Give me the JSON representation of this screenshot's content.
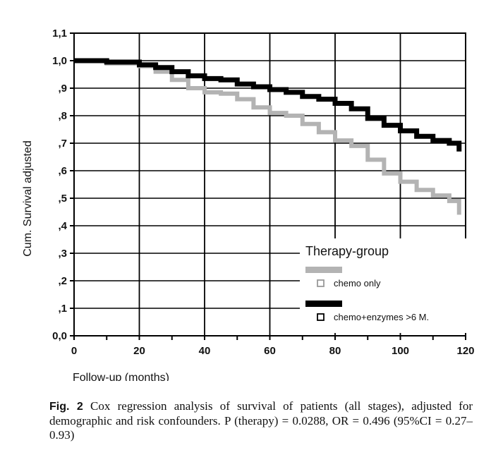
{
  "chart_data": {
    "type": "line",
    "xlabel": "Follow-up (months)",
    "ylabel": "Cum. Survival adjusted",
    "xlim": [
      0,
      120
    ],
    "ylim": [
      0,
      1.1
    ],
    "x_ticks": [
      "0",
      "20",
      "40",
      "60",
      "80",
      "100",
      "120"
    ],
    "y_ticks": [
      "0,0",
      ",1",
      ",2",
      ",3",
      ",4",
      ",5",
      ",6",
      ",7",
      ",8",
      ",9",
      "1,0",
      "1,1"
    ],
    "grid": true,
    "legend_title": "Therapy-group",
    "legend_position": "bottom-right",
    "series": [
      {
        "name": "chemo only",
        "color": "#b3b3b3",
        "points": [
          [
            0,
            1.0
          ],
          [
            10,
            0.99
          ],
          [
            20,
            0.98
          ],
          [
            25,
            0.96
          ],
          [
            30,
            0.93
          ],
          [
            35,
            0.9
          ],
          [
            40,
            0.885
          ],
          [
            45,
            0.88
          ],
          [
            50,
            0.86
          ],
          [
            55,
            0.83
          ],
          [
            60,
            0.81
          ],
          [
            65,
            0.8
          ],
          [
            70,
            0.77
          ],
          [
            75,
            0.74
          ],
          [
            80,
            0.71
          ],
          [
            85,
            0.69
          ],
          [
            90,
            0.64
          ],
          [
            95,
            0.59
          ],
          [
            100,
            0.56
          ],
          [
            105,
            0.53
          ],
          [
            110,
            0.51
          ],
          [
            115,
            0.49
          ],
          [
            118,
            0.44
          ]
        ]
      },
      {
        "name": "chemo+enzymes >6 M.",
        "color": "#000000",
        "points": [
          [
            0,
            1.0
          ],
          [
            10,
            0.995
          ],
          [
            20,
            0.985
          ],
          [
            25,
            0.975
          ],
          [
            30,
            0.96
          ],
          [
            35,
            0.945
          ],
          [
            40,
            0.935
          ],
          [
            45,
            0.93
          ],
          [
            50,
            0.915
          ],
          [
            55,
            0.905
          ],
          [
            60,
            0.895
          ],
          [
            65,
            0.885
          ],
          [
            70,
            0.87
          ],
          [
            75,
            0.86
          ],
          [
            80,
            0.845
          ],
          [
            85,
            0.825
          ],
          [
            90,
            0.79
          ],
          [
            95,
            0.765
          ],
          [
            100,
            0.745
          ],
          [
            105,
            0.725
          ],
          [
            110,
            0.71
          ],
          [
            115,
            0.7
          ],
          [
            118,
            0.67
          ]
        ]
      }
    ]
  },
  "caption": {
    "label": "Fig. 2",
    "text": "Cox regression analysis of survival of patients (all stages), adjusted for demographic and risk confounders. P (therapy) = 0.0288, OR = 0.496 (95%CI = 0.27–0.93)"
  }
}
